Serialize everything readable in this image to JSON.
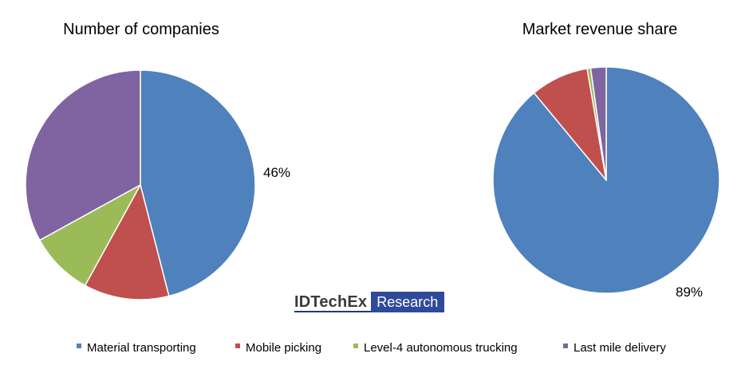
{
  "chart_data": [
    {
      "type": "pie",
      "title": "Number of companies",
      "categories": [
        "Material transporting",
        "Mobile picking",
        "Level-4 autonomous trucking",
        "Last mile delivery"
      ],
      "values": [
        46,
        12,
        9,
        33
      ],
      "unit": "%",
      "labels": [
        {
          "category": "Material transporting",
          "text": "46%"
        }
      ]
    },
    {
      "type": "pie",
      "title": "Market revenue share",
      "categories": [
        "Material transporting",
        "Mobile picking",
        "Level-4 autonomous trucking",
        "Last mile delivery"
      ],
      "values": [
        89,
        8.3,
        0.5,
        2.2
      ],
      "unit": "%",
      "labels": [
        {
          "category": "Material transporting",
          "text": "89%"
        }
      ]
    }
  ],
  "legend": {
    "placement": "bottom",
    "items": [
      {
        "label": "Material transporting",
        "color": "#4f81bd"
      },
      {
        "label": "Mobile picking",
        "color": "#c0504d"
      },
      {
        "label": "Level-4 autonomous trucking",
        "color": "#9bbb59"
      },
      {
        "label": "Last mile delivery",
        "color": "#8064a2"
      }
    ]
  },
  "logo": {
    "brand": "IDTechEx",
    "tagline": "Research"
  }
}
